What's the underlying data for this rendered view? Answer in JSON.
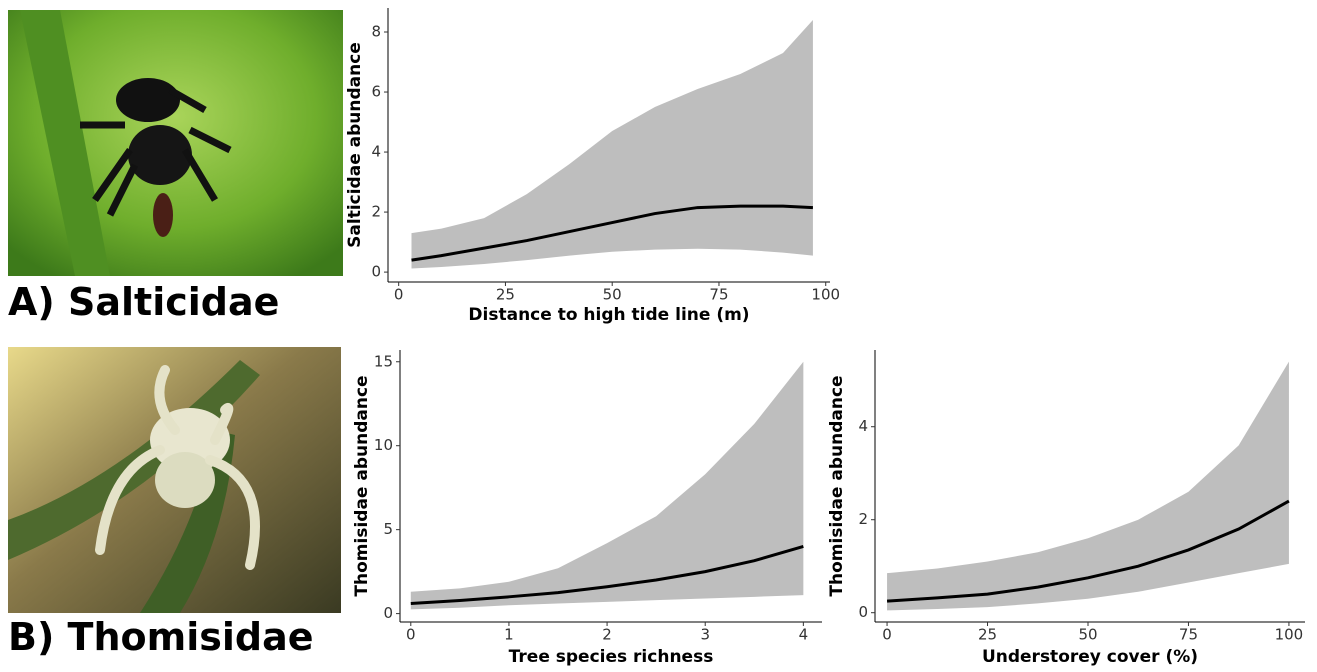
{
  "panels": [
    {
      "label": "A) Salticidae"
    },
    {
      "label": "B) Thomisidae"
    }
  ],
  "chart_data": [
    {
      "type": "line",
      "x_label": "Distance to high tide line (m)",
      "y_label": "Salticidae abundance",
      "x": [
        3,
        10,
        20,
        30,
        40,
        50,
        60,
        70,
        80,
        90,
        97
      ],
      "values": [
        0.4,
        0.55,
        0.8,
        1.05,
        1.35,
        1.65,
        1.95,
        2.15,
        2.2,
        2.2,
        2.15
      ],
      "upper": [
        1.3,
        1.45,
        1.8,
        2.6,
        3.6,
        4.7,
        5.5,
        6.1,
        6.6,
        7.3,
        8.4
      ],
      "lower": [
        0.12,
        0.17,
        0.27,
        0.4,
        0.55,
        0.68,
        0.75,
        0.78,
        0.75,
        0.65,
        0.55
      ],
      "color": "#000000",
      "band_color": "#bebebe",
      "xlim": [
        -2.5,
        101
      ],
      "xticks": [
        0,
        25,
        50,
        75,
        100
      ],
      "ylim": [
        -0.33,
        8.8
      ],
      "yticks": [
        0,
        2,
        4,
        6,
        8
      ]
    },
    {
      "type": "line",
      "x_label": "Tree species richness",
      "y_label": "Thomisidae abundance",
      "x": [
        0,
        0.5,
        1,
        1.5,
        2,
        2.5,
        3,
        3.5,
        4
      ],
      "values": [
        0.6,
        0.78,
        1.0,
        1.25,
        1.6,
        2.0,
        2.5,
        3.15,
        4.0
      ],
      "upper": [
        1.3,
        1.5,
        1.9,
        2.7,
        4.2,
        5.8,
        8.3,
        11.3,
        15.0
      ],
      "lower": [
        0.25,
        0.35,
        0.5,
        0.6,
        0.7,
        0.8,
        0.9,
        1.0,
        1.1
      ],
      "color": "#000000",
      "band_color": "#bebebe",
      "xlim": [
        -0.11,
        4.19
      ],
      "xticks": [
        0,
        1,
        2,
        3,
        4
      ],
      "ylim": [
        -0.5,
        15.7
      ],
      "yticks": [
        0,
        5,
        10,
        15
      ]
    },
    {
      "type": "line",
      "x_label": "Understorey cover (%)",
      "y_label": "Thomisidae abundance",
      "x": [
        0,
        12.5,
        25,
        37.5,
        50,
        62.5,
        75,
        87.5,
        100
      ],
      "values": [
        0.25,
        0.32,
        0.4,
        0.55,
        0.75,
        1.0,
        1.35,
        1.8,
        2.4
      ],
      "upper": [
        0.85,
        0.95,
        1.1,
        1.3,
        1.6,
        2.0,
        2.6,
        3.6,
        5.4
      ],
      "lower": [
        0.05,
        0.08,
        0.12,
        0.2,
        0.3,
        0.45,
        0.65,
        0.85,
        1.05
      ],
      "color": "#000000",
      "band_color": "#bebebe",
      "xlim": [
        -3,
        104
      ],
      "xticks": [
        0,
        25,
        50,
        75,
        100
      ],
      "ylim": [
        -0.2,
        5.65
      ],
      "yticks": [
        0,
        2,
        4
      ]
    }
  ]
}
